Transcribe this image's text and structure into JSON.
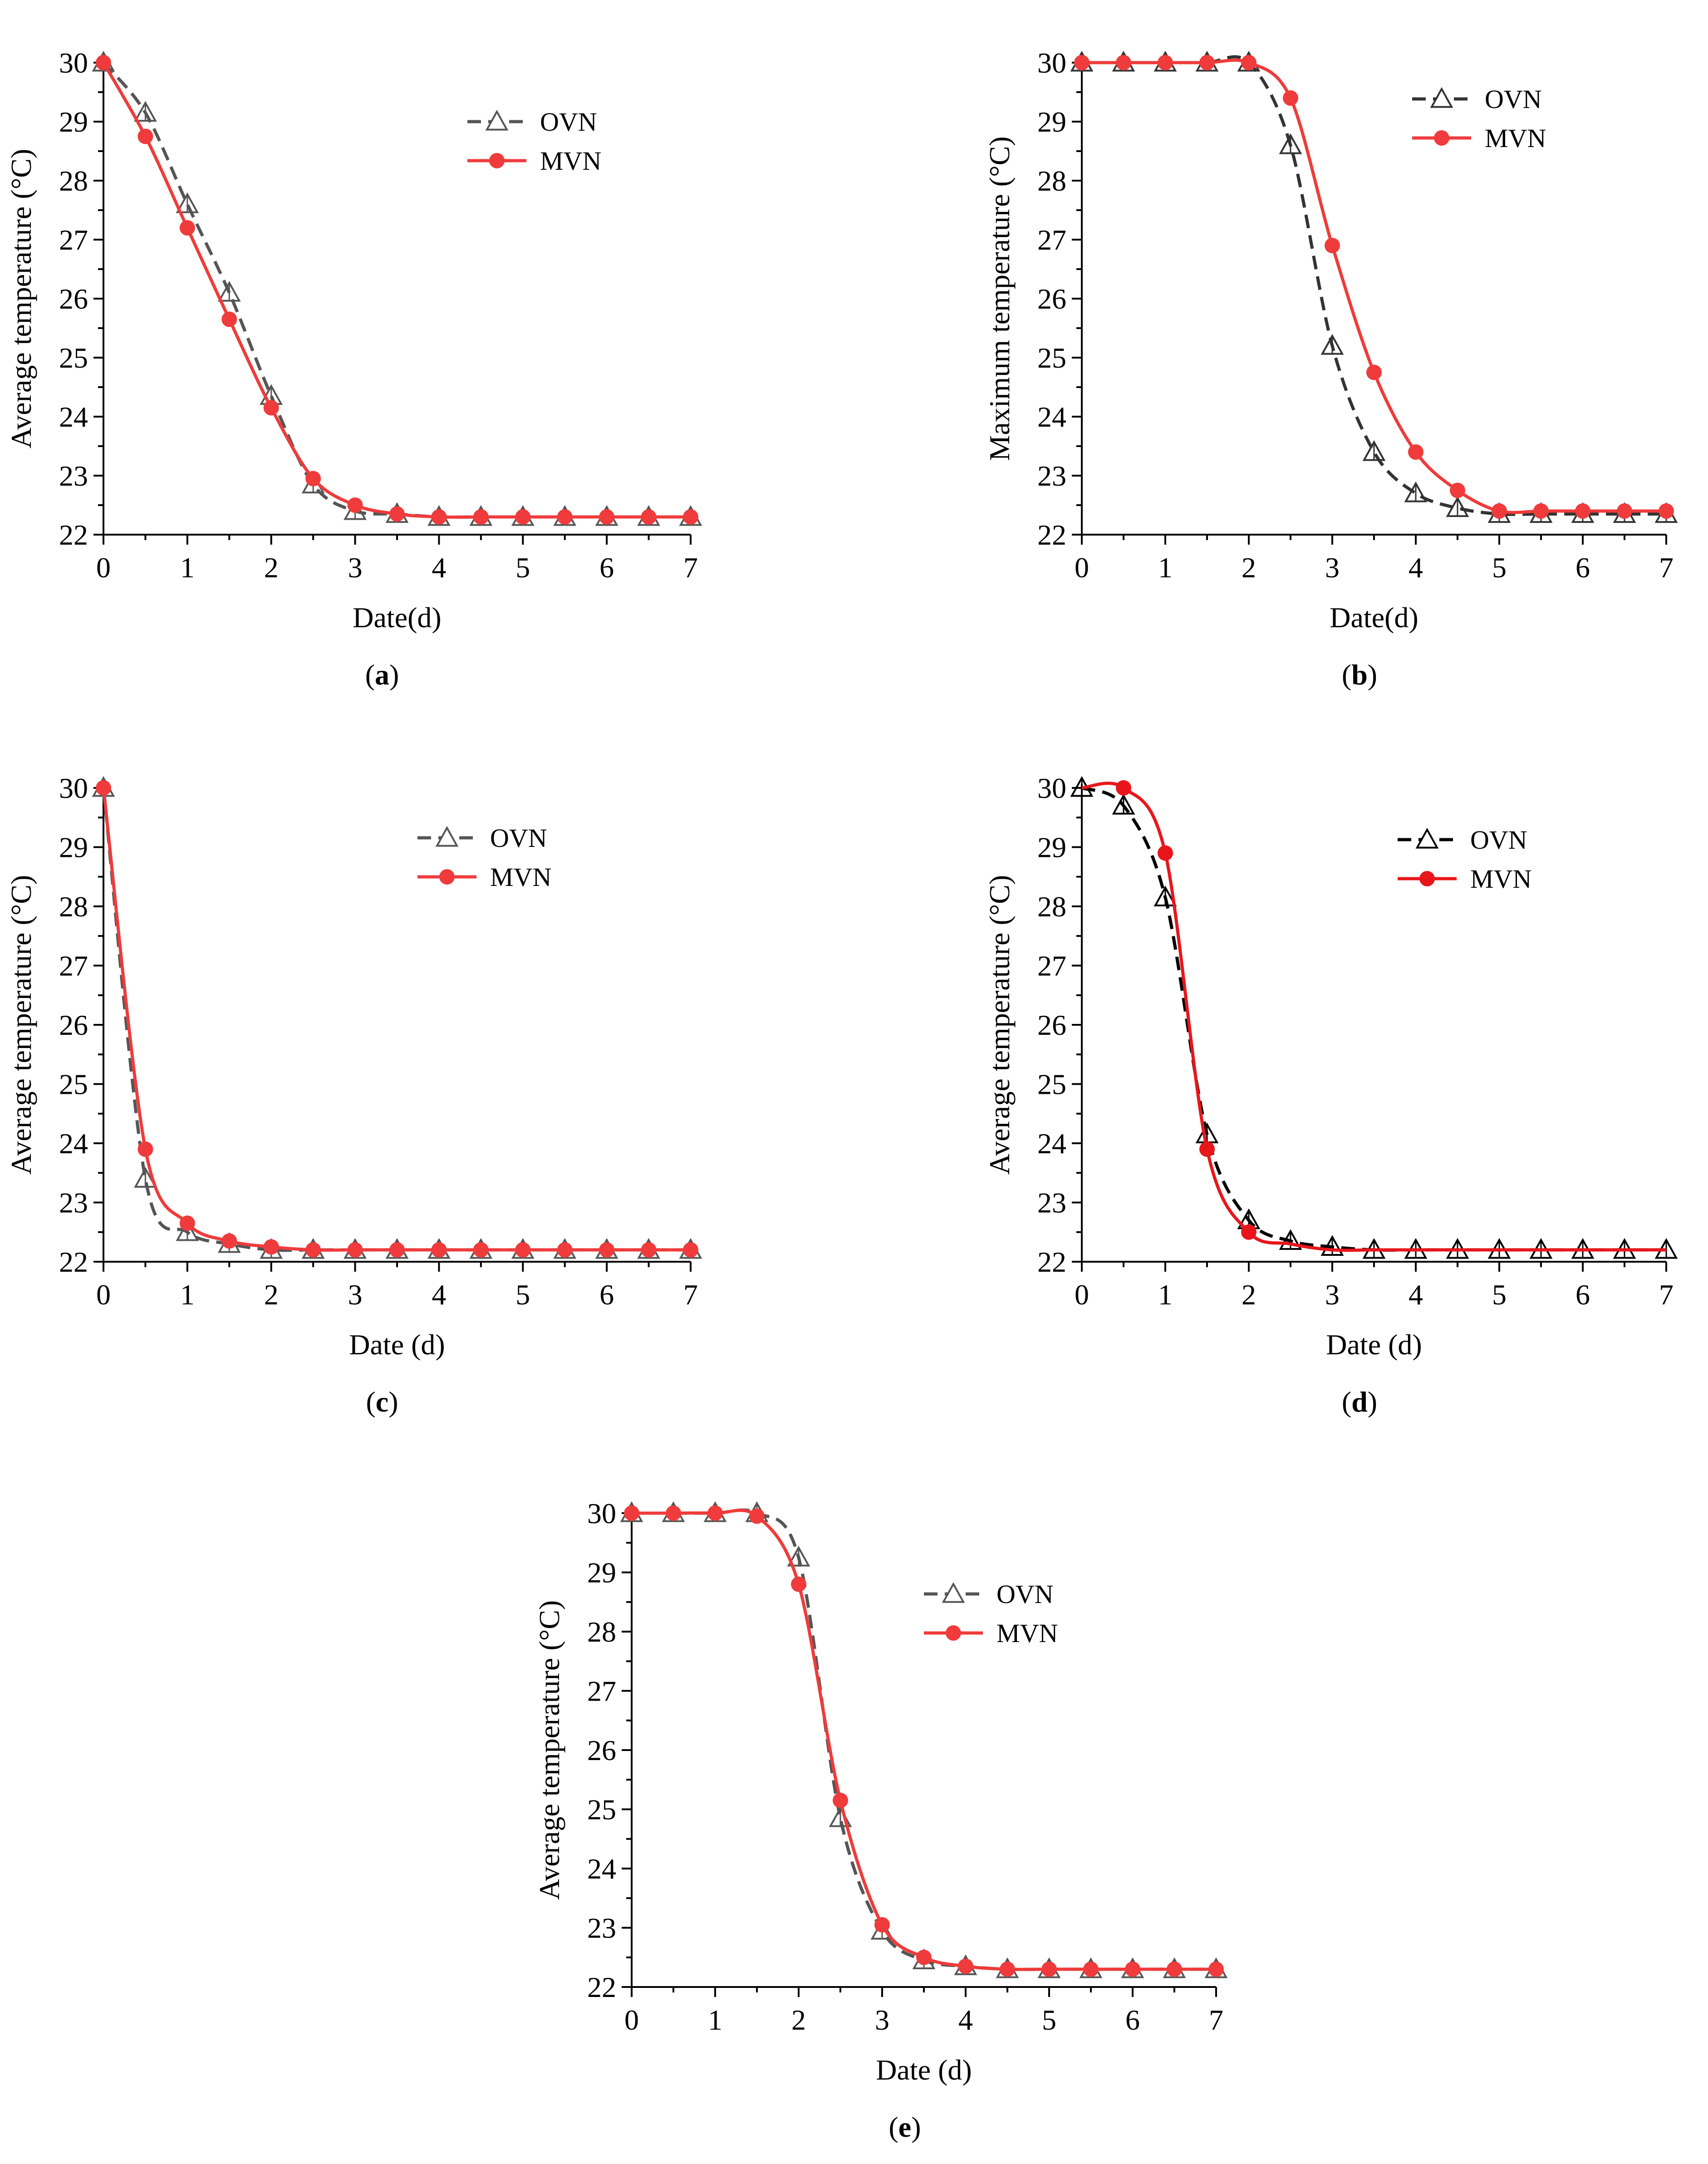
{
  "chart_data": [
    {
      "id": "a",
      "type": "line",
      "caption": "a",
      "xlabel": "Date(d)",
      "ylabel": "Average temperature (°C)",
      "xlim": [
        0,
        7
      ],
      "ylim": [
        22,
        30
      ],
      "xticks": [
        0,
        1,
        2,
        3,
        4,
        5,
        6,
        7
      ],
      "yticks": [
        22,
        23,
        24,
        25,
        26,
        27,
        28,
        29,
        30
      ],
      "x": [
        0,
        0.5,
        1,
        1.5,
        2,
        2.5,
        3,
        3.5,
        4,
        4.5,
        5,
        5.5,
        6,
        6.5,
        7
      ],
      "legend_position": "top-center",
      "series": [
        {
          "name": "OVN",
          "style": "dashed-triangle",
          "color": "#555555",
          "values": [
            30,
            29.15,
            27.6,
            26.1,
            24.35,
            22.85,
            22.4,
            22.35,
            22.3,
            22.3,
            22.3,
            22.3,
            22.3,
            22.3,
            22.3
          ]
        },
        {
          "name": "MVN",
          "style": "solid-circle",
          "color": "#ef3b3b",
          "values": [
            30,
            28.75,
            27.2,
            25.65,
            24.15,
            22.95,
            22.5,
            22.35,
            22.3,
            22.3,
            22.3,
            22.3,
            22.3,
            22.3,
            22.3
          ]
        }
      ]
    },
    {
      "id": "b",
      "type": "line",
      "caption": "b",
      "xlabel": "Date(d)",
      "ylabel": "Maximum temperature (°C)",
      "xlim": [
        0,
        7
      ],
      "ylim": [
        22,
        30
      ],
      "xticks": [
        0,
        1,
        2,
        3,
        4,
        5,
        6,
        7
      ],
      "yticks": [
        22,
        23,
        24,
        25,
        26,
        27,
        28,
        29,
        30
      ],
      "x": [
        0,
        0.5,
        1,
        1.5,
        2,
        2.5,
        3,
        3.5,
        4,
        4.5,
        5,
        5.5,
        6,
        6.5,
        7
      ],
      "legend_position": "top-right",
      "series": [
        {
          "name": "OVN",
          "style": "dashed-triangle",
          "color": "#333333",
          "values": [
            30,
            30,
            30,
            30,
            30,
            28.6,
            25.2,
            23.4,
            22.7,
            22.45,
            22.35,
            22.35,
            22.35,
            22.35,
            22.35
          ]
        },
        {
          "name": "MVN",
          "style": "solid-circle",
          "color": "#ef3b3b",
          "values": [
            30,
            30,
            30,
            30,
            30,
            29.4,
            26.9,
            24.75,
            23.4,
            22.75,
            22.4,
            22.4,
            22.4,
            22.4,
            22.4
          ]
        }
      ]
    },
    {
      "id": "c",
      "type": "line",
      "caption": "c",
      "xlabel": "Date (d)",
      "ylabel": "Average temperature (°C)",
      "xlim": [
        0,
        7
      ],
      "ylim": [
        22,
        30
      ],
      "xticks": [
        0,
        1,
        2,
        3,
        4,
        5,
        6,
        7
      ],
      "yticks": [
        22,
        23,
        24,
        25,
        26,
        27,
        28,
        29,
        30
      ],
      "x": [
        0,
        0.5,
        1,
        1.5,
        2,
        2.5,
        3,
        3.5,
        4,
        4.5,
        5,
        5.5,
        6,
        6.5,
        7
      ],
      "legend_position": "top-center",
      "series": [
        {
          "name": "OVN",
          "style": "dashed-triangle",
          "color": "#555555",
          "values": [
            30,
            23.4,
            22.5,
            22.3,
            22.2,
            22.2,
            22.2,
            22.2,
            22.2,
            22.2,
            22.2,
            22.2,
            22.2,
            22.2,
            22.2
          ]
        },
        {
          "name": "MVN",
          "style": "solid-circle",
          "color": "#ef3b3b",
          "values": [
            30,
            23.9,
            22.65,
            22.35,
            22.25,
            22.2,
            22.2,
            22.2,
            22.2,
            22.2,
            22.2,
            22.2,
            22.2,
            22.2,
            22.2
          ]
        }
      ]
    },
    {
      "id": "d",
      "type": "line",
      "caption": "d",
      "xlabel": "Date (d)",
      "ylabel": "Average temperature (°C)",
      "xlim": [
        0,
        7
      ],
      "ylim": [
        22,
        30
      ],
      "xticks": [
        0,
        1,
        2,
        3,
        4,
        5,
        6,
        7
      ],
      "yticks": [
        22,
        23,
        24,
        25,
        26,
        27,
        28,
        29,
        30
      ],
      "x": [
        0,
        0.5,
        1,
        1.5,
        2,
        2.5,
        3,
        3.5,
        4,
        4.5,
        5,
        5.5,
        6,
        6.5,
        7
      ],
      "legend_position": "top-right",
      "series": [
        {
          "name": "OVN",
          "style": "dashed-triangle",
          "color": "#000000",
          "values": [
            30,
            29.7,
            28.15,
            24.15,
            22.7,
            22.35,
            22.25,
            22.2,
            22.2,
            22.2,
            22.2,
            22.2,
            22.2,
            22.2,
            22.2
          ]
        },
        {
          "name": "MVN",
          "style": "solid-circle",
          "color": "#e8161b",
          "values": [
            30,
            30,
            28.9,
            23.9,
            22.5,
            22.3,
            22.2,
            22.2,
            22.2,
            22.2,
            22.2,
            22.2,
            22.2,
            22.2,
            22.2
          ],
          "marker_indices": [
            1,
            2,
            3,
            4
          ]
        }
      ]
    },
    {
      "id": "e",
      "type": "line",
      "caption": "e",
      "xlabel": "Date (d)",
      "ylabel": "Average temperature (°C)",
      "xlim": [
        0,
        7
      ],
      "ylim": [
        22,
        30
      ],
      "xticks": [
        0,
        1,
        2,
        3,
        4,
        5,
        6,
        7
      ],
      "yticks": [
        22,
        23,
        24,
        25,
        26,
        27,
        28,
        29,
        30
      ],
      "x": [
        0,
        0.5,
        1,
        1.5,
        2,
        2.5,
        3,
        3.5,
        4,
        4.5,
        5,
        5.5,
        6,
        6.5,
        7
      ],
      "legend_position": "top-right",
      "series": [
        {
          "name": "OVN",
          "style": "dashed-triangle",
          "color": "#555555",
          "values": [
            30,
            30,
            30,
            30,
            29.25,
            24.85,
            22.95,
            22.45,
            22.35,
            22.3,
            22.3,
            22.3,
            22.3,
            22.3,
            22.3
          ]
        },
        {
          "name": "MVN",
          "style": "solid-circle",
          "color": "#ef3b3b",
          "values": [
            30,
            30,
            30,
            29.95,
            28.8,
            25.15,
            23.05,
            22.5,
            22.35,
            22.3,
            22.3,
            22.3,
            22.3,
            22.3,
            22.3
          ]
        }
      ]
    }
  ]
}
